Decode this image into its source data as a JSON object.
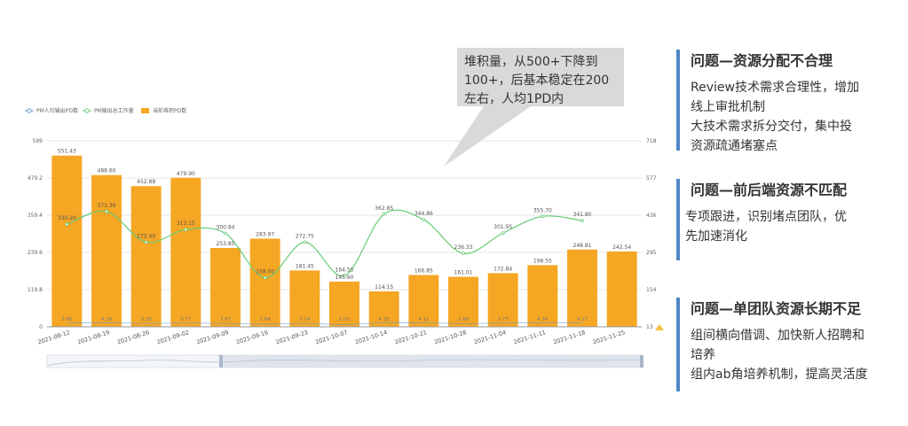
{
  "callout": {
    "lines": [
      "堆积量，从500+下降到",
      "100+，后基本稳定在200",
      "左右，人均1PD内"
    ]
  },
  "panels": [
    {
      "title": "问题—资源分配不合理",
      "lines": [
        "Review技术需求合理性，增加",
        "线上审批机制",
        "大技术需求拆分交付，集中投",
        "资源疏通堵塞点"
      ]
    },
    {
      "title": "问题—前后端资源不匹配",
      "lines": [
        "专项跟进，识别堵点团队，优",
        "先加速消化"
      ]
    },
    {
      "title": "问题—单团队资源长期不足",
      "lines": [
        "组间横向借调、加快新人招聘和",
        "培养",
        "组内ab角培养机制，提高灵活度"
      ]
    }
  ],
  "chart_data": {
    "type": "bar",
    "categories": [
      "2021-08-12",
      "2021-08-19",
      "2021-08-26",
      "2021-09-02",
      "2021-09-09",
      "2021-09-16",
      "2021-09-23",
      "2021-10-07",
      "2021-10-14",
      "2021-10-21",
      "2021-10-28",
      "2021-11-04",
      "2021-11-11",
      "2021-11-18",
      "2021-11-25"
    ],
    "legend": [
      "PM人均输出PD数",
      "PM输出总工作量",
      "当前堆积PD数"
    ],
    "y_left_ticks": [
      "0",
      "119.8",
      "239.6",
      "359.4",
      "479.2",
      "599"
    ],
    "y_left_range": [
      0,
      599
    ],
    "y_right_ticks": [
      "13",
      "154",
      "295",
      "436",
      "577",
      "718"
    ],
    "y_right_range": [
      13,
      718
    ],
    "series": [
      {
        "name": "当前堆积PD数",
        "kind": "bar",
        "axis": "left",
        "color": "#f5a623",
        "values": [
          551.43,
          488.6,
          452.88,
          479.9,
          253.85,
          283.97,
          181.45,
          145.6,
          114.15,
          166.85,
          161.01,
          172.84,
          198.55,
          248.81,
          242.54
        ],
        "labels": [
          "551.43",
          "488.60",
          "452.88",
          "479.90",
          "253.85",
          "283.97",
          "181.45",
          "145.60",
          "114.15",
          "166.85",
          "161.01",
          "172.84",
          "198.55",
          "248.81",
          "242.54"
        ]
      },
      {
        "name": "PM输出总工作量",
        "kind": "line",
        "axis": "left",
        "color": "#66cc77",
        "values": [
          330.2,
          371.36,
          272.4,
          313.15,
          300.84,
          158.0,
          272.75,
          164.55,
          362.85,
          344.86,
          236.33,
          301.95,
          355.7,
          341.8,
          null
        ],
        "labels": [
          "330.20",
          "371.36",
          "272.40",
          "313.15",
          "300.84",
          "158.00",
          "272.75",
          "164.55",
          "362.85",
          "344.86",
          "236.33",
          "301.95",
          "355.70",
          "341.80",
          ""
        ]
      },
      {
        "name": "PM人均输出PD数",
        "kind": "line",
        "axis": "right",
        "color": "#5b9bd5",
        "values": [
          3.6,
          4.28,
          3.28,
          3.77,
          3.07,
          1.84,
          3.14,
          1.01,
          4.32,
          4.11,
          2.88,
          3.73,
          4.39,
          4.17,
          null
        ],
        "labels": [
          "3.60",
          "4.28",
          "3.28",
          "3.77",
          "3.07",
          "1.84",
          "3.14",
          "1.01",
          "4.32",
          "4.11",
          "2.88",
          "3.73",
          "4.39",
          "4.17",
          ""
        ]
      }
    ]
  }
}
